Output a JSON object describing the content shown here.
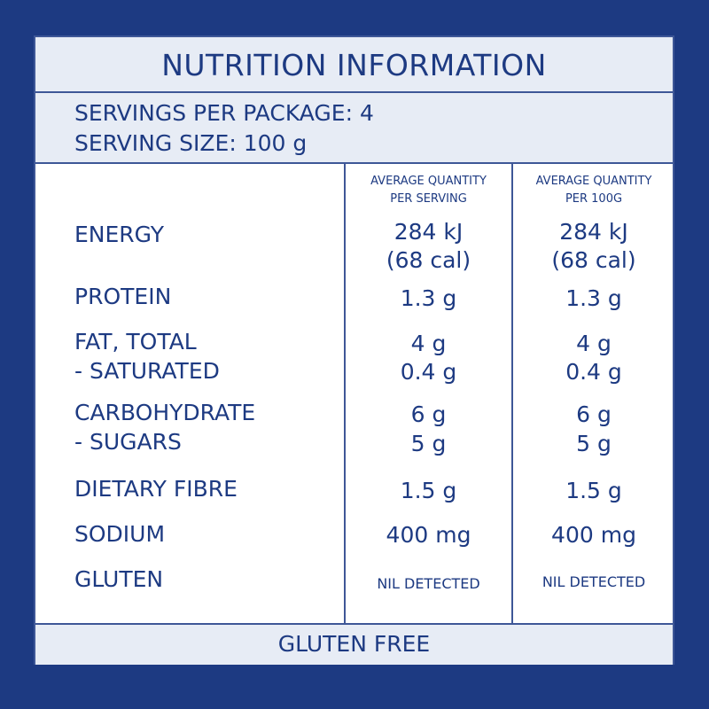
{
  "title": "NUTRITION INFORMATION",
  "servings_per_package": "SERVINGS PER PACKAGE: 4",
  "serving_size": "SERVING SIZE: 100 g",
  "columns": {
    "per_serving_line1": "AVERAGE QUANTITY",
    "per_serving_line2": "PER SERVING",
    "per_100g_line1": "AVERAGE QUANTITY",
    "per_100g_line2": "PER 100G"
  },
  "rows": {
    "energy": {
      "label": "ENERGY",
      "serving_line1": "284 kJ",
      "serving_line2": "(68 cal)",
      "per100_line1": "284 kJ",
      "per100_line2": "(68 cal)"
    },
    "protein": {
      "label": "PROTEIN",
      "serving": "1.3 g",
      "per100": "1.3 g"
    },
    "fat_total": {
      "label": "FAT, TOTAL",
      "serving": "4 g",
      "per100": "4 g"
    },
    "saturated": {
      "label": "- SATURATED",
      "serving": "0.4 g",
      "per100": "0.4 g"
    },
    "carbohydrate": {
      "label": "CARBOHYDRATE",
      "serving": "6 g",
      "per100": "6 g"
    },
    "sugars": {
      "label": "- SUGARS",
      "serving": "5 g",
      "per100": "5 g"
    },
    "dietary_fibre": {
      "label": "DIETARY FIBRE",
      "serving": "1.5 g",
      "per100": "1.5 g"
    },
    "sodium": {
      "label": "SODIUM",
      "serving": "400 mg",
      "per100": "400 mg"
    },
    "gluten": {
      "label": "GLUTEN",
      "serving": "NIL DETECTED",
      "per100": "NIL DETECTED"
    }
  },
  "footer": "GLUTEN FREE",
  "colors": {
    "navy": "#1d3a82",
    "panel_tint": "#e7ecf5",
    "panel": "#ffffff"
  }
}
